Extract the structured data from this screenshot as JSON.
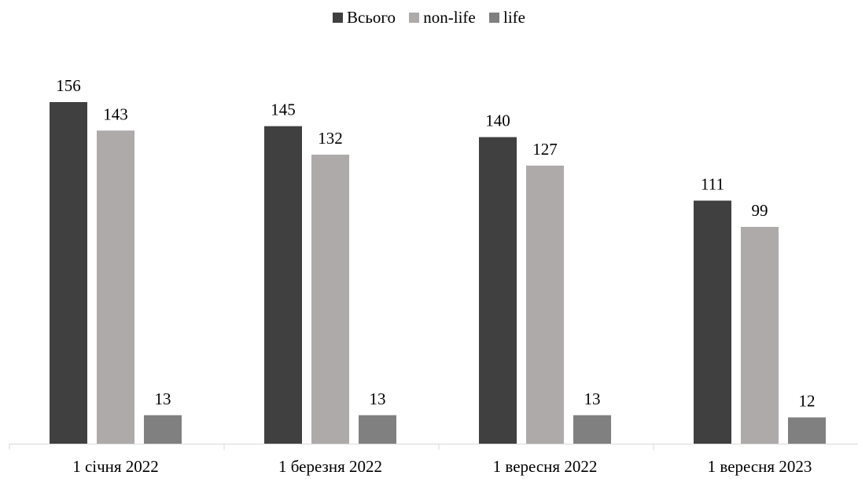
{
  "chart_data": {
    "type": "bar",
    "categories": [
      "1 січня 2022",
      "1 березня 2022",
      "1 вересня 2022",
      "1 вересня 2023"
    ],
    "series": [
      {
        "name": "Всього",
        "values": [
          156,
          145,
          140,
          111
        ],
        "color": "#404040"
      },
      {
        "name": "non-life",
        "values": [
          143,
          132,
          127,
          99
        ],
        "color": "#aeaaaa"
      },
      {
        "name": "life",
        "values": [
          13,
          13,
          13,
          12
        ],
        "color": "#808080"
      }
    ],
    "legend_position": "top-center",
    "data_labels": true,
    "grid": false,
    "ylim": [
      0,
      165
    ]
  }
}
